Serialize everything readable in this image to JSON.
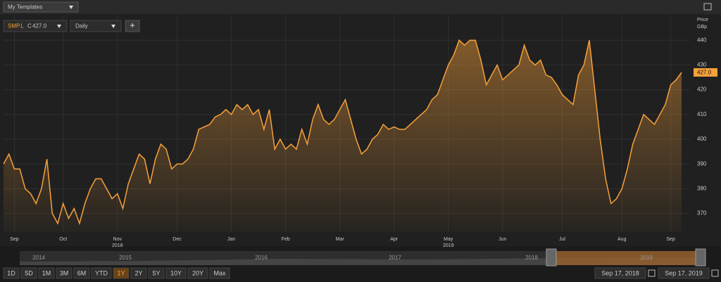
{
  "header": {
    "templates": "My Templates"
  },
  "toolbar": {
    "symbol": "SMP.L",
    "close_label": "C",
    "close": "427.0",
    "interval": "Daily",
    "add": "+"
  },
  "chart_data": {
    "type": "area",
    "y_axis_label": "Price",
    "y_axis_unit": "GBp",
    "last_label": "427.0",
    "color": "#f7a13a",
    "values": [
      390,
      394,
      388,
      388,
      380,
      378,
      374,
      380,
      392,
      370,
      366,
      374,
      368,
      372,
      366,
      374,
      380,
      384,
      384,
      380,
      376,
      378,
      372,
      382,
      388,
      394,
      392,
      382,
      392,
      398,
      396,
      388,
      390,
      390,
      392,
      396,
      404,
      405,
      406,
      409,
      410,
      412,
      410,
      414,
      412,
      414,
      410,
      412,
      404,
      412,
      396,
      400,
      396,
      398,
      396,
      404,
      398,
      408,
      414,
      408,
      406,
      408,
      412,
      416,
      408,
      400,
      394,
      396,
      400,
      402,
      406,
      404,
      405,
      404,
      404,
      406,
      408,
      410,
      412,
      416,
      418,
      424,
      430,
      434,
      440,
      438,
      440,
      440,
      432,
      422,
      426,
      430,
      424,
      426,
      428,
      430,
      438,
      432,
      430,
      432,
      426,
      425,
      422,
      418,
      416,
      414,
      426,
      430,
      440,
      420,
      400,
      384,
      374,
      376,
      380,
      388,
      398,
      404,
      410,
      408,
      406,
      410,
      414,
      422,
      424,
      427
    ],
    "xlim": [
      0,
      125
    ],
    "xticks": [
      {
        "value": 2,
        "label": "Sep"
      },
      {
        "value": 11,
        "label": "Oct"
      },
      {
        "value": 21,
        "label": "Nov"
      },
      {
        "value": 32,
        "label": "Dec"
      },
      {
        "value": 42,
        "label": "Jan"
      },
      {
        "value": 52,
        "label": "Feb"
      },
      {
        "value": 62,
        "label": "Mar"
      },
      {
        "value": 72,
        "label": "Apr"
      },
      {
        "value": 82,
        "label": "May"
      },
      {
        "value": 92,
        "label": "Jun"
      },
      {
        "value": 103,
        "label": "Jul"
      },
      {
        "value": 114,
        "label": "Aug"
      },
      {
        "value": 123,
        "label": "Sep"
      }
    ],
    "year_labels": [
      {
        "value": 21,
        "label": "2018"
      },
      {
        "value": 82,
        "label": "2019"
      }
    ],
    "ylim": [
      362.5,
      450
    ],
    "yticks": [
      370,
      380,
      390,
      400,
      410,
      420,
      430,
      440
    ],
    "grid": true
  },
  "navigator": {
    "years": [
      "2014",
      "2015",
      "2016",
      "2017",
      "2018",
      "2019"
    ]
  },
  "ranges": [
    "1D",
    "5D",
    "1M",
    "3M",
    "6M",
    "YTD",
    "1Y",
    "2Y",
    "5Y",
    "10Y",
    "20Y",
    "Max"
  ],
  "active_range": "1Y",
  "dates": {
    "from": "Sep 17, 2018",
    "to": "Sep 17, 2019"
  }
}
